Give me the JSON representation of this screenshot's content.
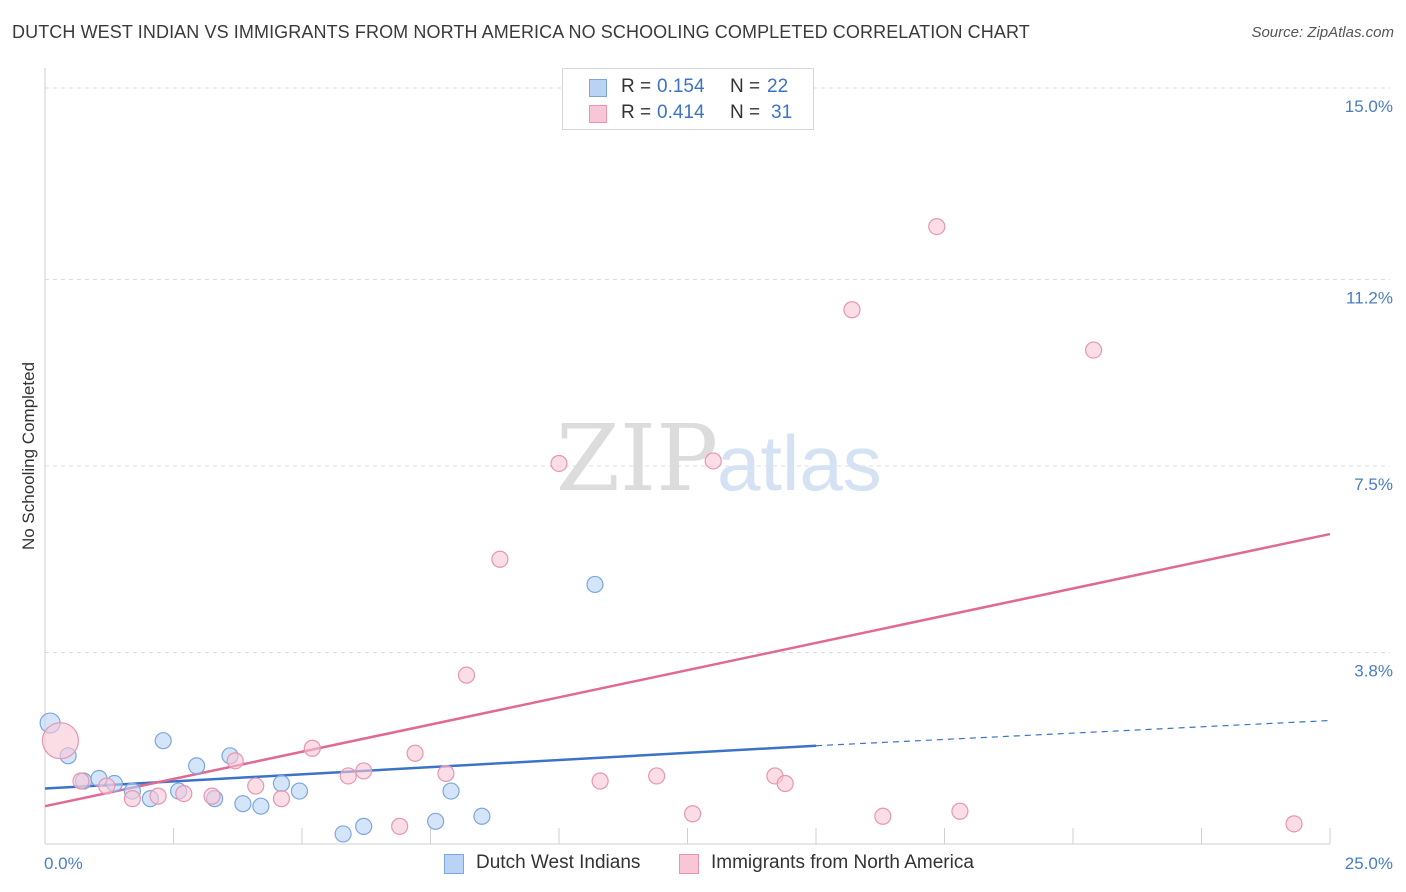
{
  "title": "DUTCH WEST INDIAN VS IMMIGRANTS FROM NORTH AMERICA NO SCHOOLING COMPLETED CORRELATION CHART",
  "source": "Source: ZipAtlas.com",
  "watermark": {
    "zip": "ZIP",
    "atlas": "atlas"
  },
  "legend": {
    "r_label": "R =",
    "n_label": "N =",
    "rows": [
      {
        "r": "0.154",
        "n": "22",
        "fill": "#b9d3f5",
        "stroke": "#7ea6dc"
      },
      {
        "r": "0.414",
        "n": "31",
        "fill": "#f9c6d6",
        "stroke": "#e895b1"
      }
    ]
  },
  "bottom_legend": [
    {
      "label": "Dutch West Indians",
      "fill": "#b9d3f5",
      "stroke": "#7ea6dc"
    },
    {
      "label": "Immigrants from North America",
      "fill": "#f9c6d6",
      "stroke": "#e895b1"
    }
  ],
  "chart_data": {
    "type": "scatter",
    "title": "DUTCH WEST INDIAN VS IMMIGRANTS FROM NORTH AMERICA NO SCHOOLING COMPLETED CORRELATION CHART",
    "xlabel": "",
    "ylabel": "No Schooling Completed",
    "xlim": [
      0,
      25
    ],
    "ylim": [
      0,
      15
    ],
    "x_tick_labels": [
      "0.0%",
      "25.0%"
    ],
    "y_ticks": [
      {
        "value": 3.8,
        "label": "3.8%"
      },
      {
        "value": 7.5,
        "label": "7.5%"
      },
      {
        "value": 11.2,
        "label": "11.2%"
      },
      {
        "value": 15.0,
        "label": "15.0%"
      }
    ],
    "grid": true,
    "legend_position": "top-center",
    "colors": {
      "blue": "#3b73c8",
      "pink": "#e06a93"
    },
    "series": [
      {
        "name": "Dutch West Indians",
        "color": "#7ea6dc",
        "fill": "#b9d3f5",
        "points": [
          [
            0.1,
            2.4
          ],
          [
            0.45,
            1.75
          ],
          [
            0.75,
            1.25
          ],
          [
            1.05,
            1.3
          ],
          [
            1.35,
            1.2
          ],
          [
            1.7,
            1.05
          ],
          [
            2.05,
            0.9
          ],
          [
            2.3,
            2.05
          ],
          [
            2.6,
            1.05
          ],
          [
            2.95,
            1.55
          ],
          [
            3.3,
            0.9
          ],
          [
            3.6,
            1.75
          ],
          [
            3.85,
            0.8
          ],
          [
            4.2,
            0.75
          ],
          [
            4.6,
            1.2
          ],
          [
            4.95,
            1.05
          ],
          [
            5.8,
            0.2
          ],
          [
            6.2,
            0.35
          ],
          [
            7.6,
            0.45
          ],
          [
            7.9,
            1.05
          ],
          [
            8.5,
            0.55
          ],
          [
            10.7,
            5.15
          ]
        ],
        "trend": {
          "x0": 0,
          "y0": 1.1,
          "x1": 15.0,
          "y1": 1.95,
          "x_dash_end": 25,
          "y_dash_end": 2.45
        }
      },
      {
        "name": "Immigrants from North America",
        "color": "#e895b1",
        "fill": "#f9c6d6",
        "points": [
          [
            0.3,
            2.05
          ],
          [
            0.7,
            1.25
          ],
          [
            1.2,
            1.15
          ],
          [
            1.7,
            0.9
          ],
          [
            2.2,
            0.95
          ],
          [
            2.7,
            1.0
          ],
          [
            3.25,
            0.95
          ],
          [
            3.7,
            1.65
          ],
          [
            4.1,
            1.15
          ],
          [
            4.6,
            0.9
          ],
          [
            5.2,
            1.9
          ],
          [
            5.9,
            1.35
          ],
          [
            6.2,
            1.45
          ],
          [
            6.9,
            0.35
          ],
          [
            7.2,
            1.8
          ],
          [
            7.8,
            1.4
          ],
          [
            8.2,
            3.35
          ],
          [
            8.85,
            5.65
          ],
          [
            10.0,
            7.55
          ],
          [
            10.8,
            1.25
          ],
          [
            11.9,
            1.35
          ],
          [
            12.6,
            0.6
          ],
          [
            13.0,
            7.6
          ],
          [
            14.2,
            1.35
          ],
          [
            14.4,
            1.2
          ],
          [
            15.7,
            10.6
          ],
          [
            16.3,
            0.55
          ],
          [
            17.35,
            12.25
          ],
          [
            17.8,
            0.65
          ],
          [
            20.4,
            9.8
          ],
          [
            24.3,
            0.4
          ]
        ],
        "trend": {
          "x0": 0,
          "y0": 0.75,
          "x1": 25,
          "y1": 6.15
        }
      }
    ]
  }
}
